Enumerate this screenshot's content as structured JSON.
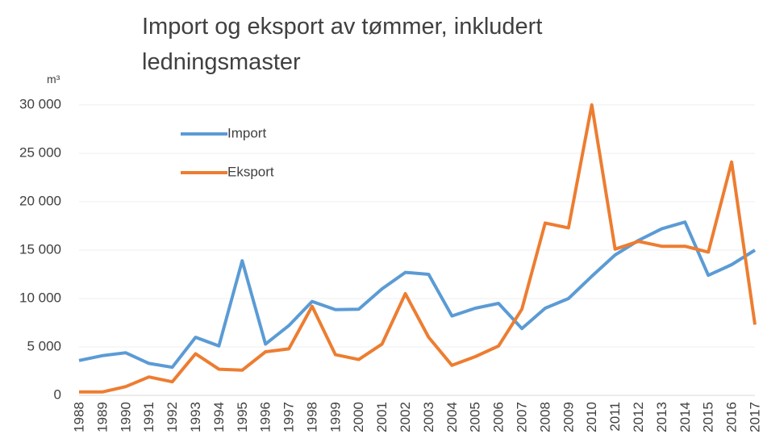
{
  "chart_data": {
    "type": "line",
    "title": "Import og eksport av tømmer, inkludert ledningsmaster",
    "y_label": "m³",
    "categories": [
      "1988",
      "1989",
      "1990",
      "1991",
      "1992",
      "1993",
      "1994",
      "1995",
      "1996",
      "1997",
      "1998",
      "1999",
      "2000",
      "2001",
      "2002",
      "2003",
      "2004",
      "2005",
      "2006",
      "2007",
      "2008",
      "2009",
      "2010",
      "2011",
      "2012",
      "2013",
      "2014",
      "2015",
      "2016",
      "2017"
    ],
    "series": [
      {
        "name": "Import",
        "color": "#5b9bd5",
        "values": [
          3600,
          4100,
          4400,
          3300,
          2900,
          6000,
          5100,
          13900,
          5300,
          7200,
          9700,
          8850,
          8900,
          11000,
          12700,
          12500,
          8200,
          9000,
          9500,
          6900,
          9000,
          10000,
          12300,
          14500,
          16000,
          17200,
          17900,
          12400,
          13500,
          15000
        ]
      },
      {
        "name": "Eksport",
        "color": "#ed7d31",
        "values": [
          350,
          350,
          900,
          1900,
          1400,
          4300,
          2700,
          2600,
          4500,
          4800,
          9200,
          4200,
          3700,
          5300,
          10500,
          6000,
          3100,
          4000,
          5100,
          8900,
          17800,
          17300,
          30000,
          15100,
          15900,
          15400,
          15400,
          14800,
          24100,
          7300
        ]
      }
    ],
    "ylim": [
      0,
      30000
    ],
    "yticks": [
      {
        "value": 0,
        "label": "0"
      },
      {
        "value": 5000,
        "label": "5 000"
      },
      {
        "value": 10000,
        "label": "10 000"
      },
      {
        "value": 15000,
        "label": "15 000"
      },
      {
        "value": 20000,
        "label": "20 000"
      },
      {
        "value": 25000,
        "label": "25 000"
      },
      {
        "value": 30000,
        "label": "30 000"
      }
    ],
    "grid": true,
    "legend": "upper left"
  }
}
